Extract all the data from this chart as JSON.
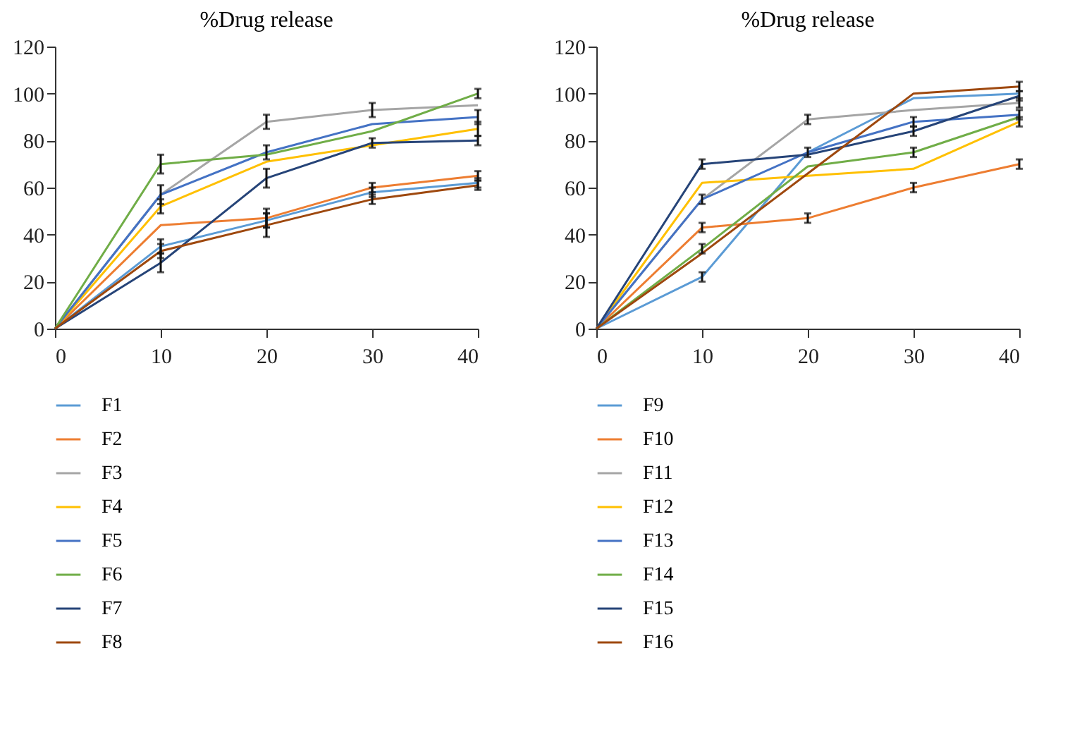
{
  "chart_data": [
    {
      "type": "line",
      "title": "%Drug release",
      "x": [
        0,
        10,
        20,
        30,
        40
      ],
      "xlim": [
        0,
        40
      ],
      "xticks": [
        0,
        10,
        20,
        30,
        40
      ],
      "ylim": [
        0,
        120
      ],
      "yticks": [
        0,
        20,
        40,
        60,
        80,
        100,
        120
      ],
      "legend": "bottom",
      "series": [
        {
          "name": "F1",
          "color": "#5b9bd5",
          "values": [
            0,
            35,
            46,
            58,
            62
          ],
          "errors": [
            null,
            3,
            3,
            2,
            2
          ]
        },
        {
          "name": "F2",
          "color": "#ed7d31",
          "values": [
            0,
            44,
            47,
            60,
            65
          ],
          "errors": [
            null,
            null,
            4,
            2,
            2
          ]
        },
        {
          "name": "F3",
          "color": "#a5a5a5",
          "values": [
            0,
            57,
            88,
            93,
            95
          ],
          "errors": [
            null,
            null,
            3,
            3,
            null
          ]
        },
        {
          "name": "F4",
          "color": "#ffc000",
          "values": [
            0,
            52,
            71,
            78,
            85
          ],
          "errors": [
            null,
            3,
            null,
            null,
            3
          ]
        },
        {
          "name": "F5",
          "color": "#4472c4",
          "values": [
            0,
            57,
            75,
            87,
            90
          ],
          "errors": [
            null,
            4,
            3,
            null,
            3
          ]
        },
        {
          "name": "F6",
          "color": "#70ad47",
          "values": [
            0,
            70,
            74,
            84,
            100
          ],
          "errors": [
            null,
            4,
            null,
            null,
            2
          ]
        },
        {
          "name": "F7",
          "color": "#264478",
          "values": [
            0,
            28,
            64,
            79,
            80
          ],
          "errors": [
            null,
            4,
            4,
            2,
            2
          ]
        },
        {
          "name": "F8",
          "color": "#9e480e",
          "values": [
            0,
            33,
            44,
            55,
            61
          ],
          "errors": [
            null,
            3,
            5,
            2,
            2
          ]
        }
      ]
    },
    {
      "type": "line",
      "title": "%Drug release",
      "x": [
        0,
        10,
        20,
        30,
        40
      ],
      "xlim": [
        0,
        40
      ],
      "xticks": [
        0,
        10,
        20,
        30,
        40
      ],
      "ylim": [
        0,
        120
      ],
      "yticks": [
        0,
        20,
        40,
        60,
        80,
        100,
        120
      ],
      "legend": "bottom",
      "series": [
        {
          "name": "F9",
          "color": "#5b9bd5",
          "values": [
            0,
            22,
            75,
            98,
            100
          ],
          "errors": [
            null,
            2,
            null,
            null,
            null
          ]
        },
        {
          "name": "F10",
          "color": "#ed7d31",
          "values": [
            0,
            43,
            47,
            60,
            70
          ],
          "errors": [
            null,
            2,
            2,
            2,
            2
          ]
        },
        {
          "name": "F11",
          "color": "#a5a5a5",
          "values": [
            0,
            55,
            89,
            93,
            96
          ],
          "errors": [
            null,
            null,
            2,
            null,
            2
          ]
        },
        {
          "name": "F12",
          "color": "#ffc000",
          "values": [
            0,
            62,
            65,
            68,
            88
          ],
          "errors": [
            null,
            null,
            null,
            null,
            2
          ]
        },
        {
          "name": "F13",
          "color": "#4472c4",
          "values": [
            0,
            55,
            75,
            88,
            91
          ],
          "errors": [
            null,
            2,
            2,
            2,
            2
          ]
        },
        {
          "name": "F14",
          "color": "#70ad47",
          "values": [
            0,
            34,
            69,
            75,
            90
          ],
          "errors": [
            null,
            2,
            null,
            2,
            null
          ]
        },
        {
          "name": "F15",
          "color": "#264478",
          "values": [
            0,
            70,
            74,
            84,
            99
          ],
          "errors": [
            null,
            2,
            null,
            2,
            2
          ]
        },
        {
          "name": "F16",
          "color": "#9e480e",
          "values": [
            0,
            32,
            66,
            100,
            103
          ],
          "errors": [
            null,
            null,
            null,
            null,
            2
          ]
        }
      ]
    }
  ]
}
